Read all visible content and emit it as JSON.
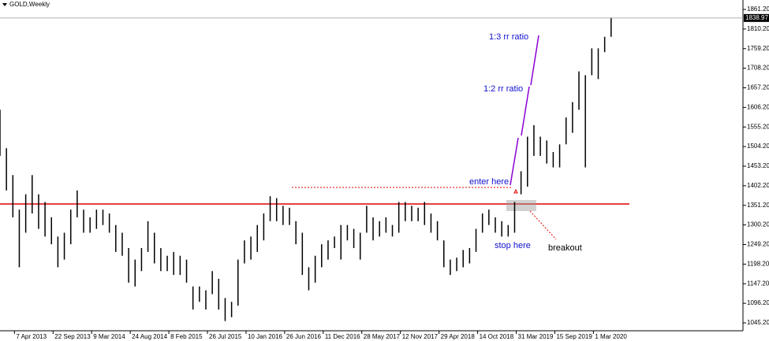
{
  "chart_data": {
    "type": "ohlc",
    "title": "GOLD,Weekly",
    "x": [
      0,
      4,
      8,
      12,
      16,
      20,
      24,
      28,
      32,
      36,
      40,
      44,
      48,
      52,
      56,
      60,
      64,
      68,
      72,
      76,
      80,
      84,
      88,
      92,
      96,
      100,
      104,
      108,
      112,
      116,
      120,
      124,
      128,
      132,
      136,
      140,
      144,
      148,
      152,
      156,
      160,
      164,
      168,
      172,
      176,
      180,
      184,
      188,
      192,
      196,
      200,
      204,
      208,
      212,
      216,
      220,
      224,
      228,
      232,
      236,
      240,
      244,
      248,
      252,
      256,
      260,
      264,
      268,
      272,
      276,
      280,
      284,
      288,
      292,
      296,
      300,
      304,
      308,
      312,
      316,
      320,
      324,
      328,
      332,
      336,
      340,
      344,
      348,
      352,
      356,
      360,
      364,
      368,
      372,
      376,
      380
    ],
    "low": [
      1480,
      1390,
      1320,
      1190,
      1280,
      1330,
      1290,
      1270,
      1250,
      1190,
      1210,
      1250,
      1320,
      1280,
      1280,
      1290,
      1300,
      1280,
      1230,
      1220,
      1150,
      1140,
      1180,
      1230,
      1200,
      1180,
      1180,
      1170,
      1170,
      1150,
      1080,
      1100,
      1080,
      1120,
      1080,
      1050,
      1060,
      1090,
      1200,
      1210,
      1230,
      1260,
      1310,
      1310,
      1300,
      1300,
      1250,
      1170,
      1130,
      1150,
      1190,
      1210,
      1240,
      1210,
      1260,
      1240,
      1210,
      1280,
      1260,
      1270,
      1280,
      1270,
      1280,
      1310,
      1310,
      1310,
      1300,
      1280,
      1260,
      1190,
      1170,
      1180,
      1190,
      1200,
      1230,
      1280,
      1300,
      1280,
      1270,
      1270,
      1280,
      1380,
      1400,
      1480,
      1480,
      1460,
      1450,
      1450,
      1510,
      1540,
      1600,
      1450,
      1690,
      1680,
      1750,
      1790
    ],
    "high": [
      1600,
      1500,
      1430,
      1340,
      1380,
      1430,
      1380,
      1360,
      1320,
      1270,
      1280,
      1340,
      1390,
      1340,
      1320,
      1340,
      1340,
      1330,
      1300,
      1280,
      1240,
      1210,
      1240,
      1310,
      1280,
      1240,
      1220,
      1230,
      1220,
      1210,
      1140,
      1140,
      1130,
      1180,
      1160,
      1110,
      1100,
      1210,
      1260,
      1270,
      1300,
      1330,
      1375,
      1370,
      1350,
      1345,
      1310,
      1280,
      1190,
      1220,
      1250,
      1260,
      1270,
      1300,
      1300,
      1290,
      1280,
      1350,
      1320,
      1310,
      1320,
      1300,
      1360,
      1360,
      1350,
      1345,
      1360,
      1330,
      1310,
      1260,
      1210,
      1215,
      1235,
      1240,
      1290,
      1330,
      1340,
      1320,
      1310,
      1300,
      1360,
      1440,
      1530,
      1560,
      1530,
      1520,
      1490,
      1510,
      1580,
      1620,
      1700,
      1690,
      1760,
      1760,
      1790,
      1840
    ],
    "current_price": 1838.97,
    "xlim": [
      0,
      462
    ],
    "ylim": [
      1028.8,
      1881.7
    ],
    "yticks": [
      {
        "value": 1045.2,
        "label": "1045.20"
      },
      {
        "value": 1096.2,
        "label": "1096.20"
      },
      {
        "value": 1147.2,
        "label": "1147.20"
      },
      {
        "value": 1198.2,
        "label": "1198.20"
      },
      {
        "value": 1249.2,
        "label": "1249.20"
      },
      {
        "value": 1300.2,
        "label": "1300.20"
      },
      {
        "value": 1351.2,
        "label": "1351.20"
      },
      {
        "value": 1402.2,
        "label": "1402.20"
      },
      {
        "value": 1453.2,
        "label": "1453.20"
      },
      {
        "value": 1504.2,
        "label": "1504.20"
      },
      {
        "value": 1555.2,
        "label": "1555.20"
      },
      {
        "value": 1606.2,
        "label": "1606.20"
      },
      {
        "value": 1657.2,
        "label": "1657.20"
      },
      {
        "value": 1708.2,
        "label": "1708.20"
      },
      {
        "value": 1759.2,
        "label": "1759.20"
      },
      {
        "value": 1810.2,
        "label": "1810.20"
      },
      {
        "value": 1861.2,
        "label": "1861.20"
      }
    ],
    "xticks": [
      {
        "value": 9,
        "label": "7 Apr 2013"
      },
      {
        "value": 33,
        "label": "22 Sep 2013"
      },
      {
        "value": 57,
        "label": "9 Mar 2014"
      },
      {
        "value": 81,
        "label": "24 Aug 2014"
      },
      {
        "value": 105,
        "label": "8 Feb 2015"
      },
      {
        "value": 129,
        "label": "26 Jul 2015"
      },
      {
        "value": 153,
        "label": "10 Jan 2016"
      },
      {
        "value": 177,
        "label": "26 Jun 2016"
      },
      {
        "value": 201,
        "label": "11 Dec 2016"
      },
      {
        "value": 225,
        "label": "28 May 2017"
      },
      {
        "value": 249,
        "label": "12 Nov 2017"
      },
      {
        "value": 273,
        "label": "29 Apr 2018"
      },
      {
        "value": 297,
        "label": "14 Oct 2018"
      },
      {
        "value": 321,
        "label": "31 Mar 2019"
      },
      {
        "value": 345,
        "label": "15 Sep 2019"
      },
      {
        "value": 369,
        "label": "1 Mar 2020"
      }
    ],
    "annotations": {
      "rr3": "1:3 rr ratio",
      "rr2": "1:2 rr ratio",
      "enter": "enter here",
      "stop": "stop here",
      "breakout": "breakout"
    }
  }
}
